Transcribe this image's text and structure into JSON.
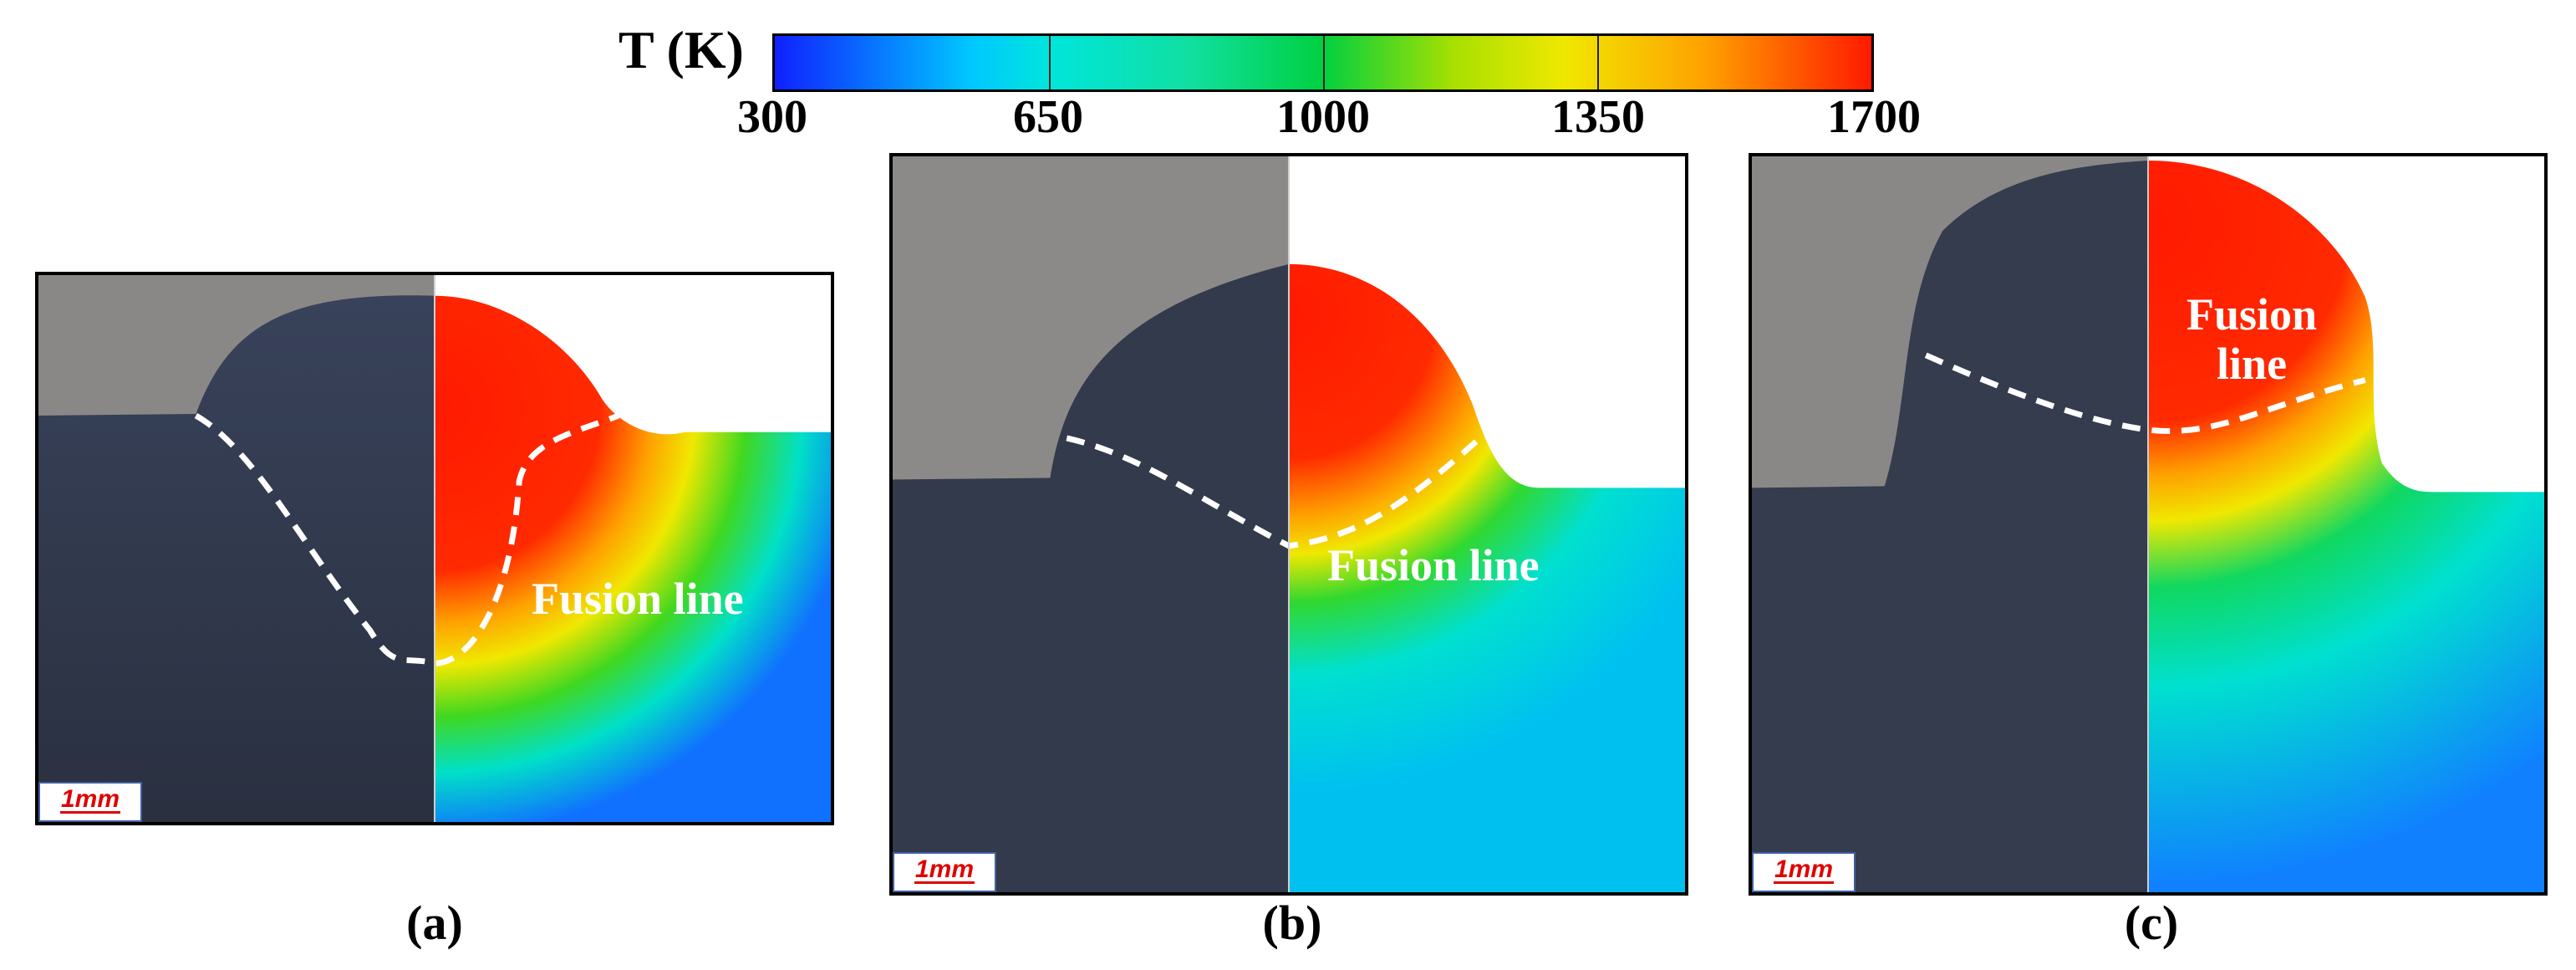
{
  "colorbar": {
    "title": "T (K)",
    "ticks": [
      "300",
      "650",
      "1000",
      "1350",
      "1700"
    ],
    "colors": [
      "#1020ff",
      "#00e5dc",
      "#00d040",
      "#f0e800",
      "#ff1a00"
    ]
  },
  "panels": [
    {
      "caption": "(a)",
      "annotation": "Fusion line",
      "scale_label": "1mm"
    },
    {
      "caption": "(b)",
      "annotation": "Fusion line",
      "scale_label": "1mm"
    },
    {
      "caption": "(c)",
      "annotation_line1": "Fusion",
      "annotation_line2": "line",
      "scale_label": "1mm"
    }
  ],
  "colors": {
    "hot": "#ff1a00",
    "cold": "#00d8e8",
    "metal_dark": "#2c3444",
    "background_grey": "#8a8886",
    "fusion_line": "#ffffff",
    "scale_text": "#e00000"
  }
}
